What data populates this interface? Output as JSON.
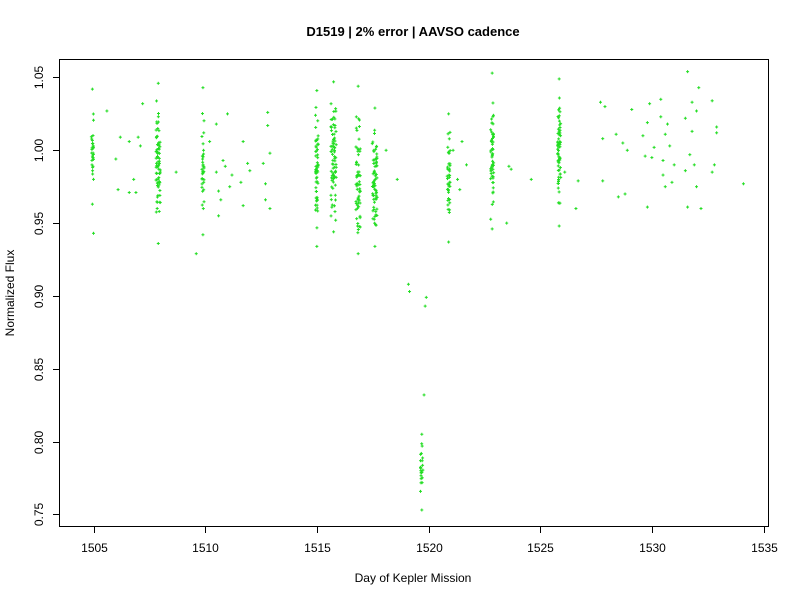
{
  "chart_data": {
    "type": "scatter",
    "title": "D1519 | 2% error | AAVSO cadence",
    "xlabel": "Day of Kepler Mission",
    "ylabel": "Normalized Flux",
    "xlim": [
      1503.5,
      1535.2
    ],
    "ylim": [
      0.742,
      1.062
    ],
    "xticks": [
      1505,
      1510,
      1515,
      1520,
      1525,
      1530,
      1535
    ],
    "xtick_labels": [
      "1505",
      "1510",
      "1515",
      "1520",
      "1525",
      "1530",
      "1535"
    ],
    "yticks": [
      0.75,
      0.8,
      0.85,
      0.9,
      0.95,
      1.0,
      1.05
    ],
    "ytick_labels": [
      "0.75",
      "0.80",
      "0.85",
      "0.90",
      "0.95",
      "1.00",
      "1.05"
    ],
    "grid": false,
    "marker_color": "#22dd22",
    "clusters": [
      {
        "x": 1504.95,
        "xspread": 0.05,
        "ymin": 0.963,
        "ymax": 1.042,
        "count": 28
      },
      {
        "x": 1507.9,
        "xspread": 0.1,
        "ymin": 0.936,
        "ymax": 1.046,
        "count": 70
      },
      {
        "x": 1509.9,
        "xspread": 0.05,
        "ymin": 0.942,
        "ymax": 1.043,
        "count": 32
      },
      {
        "x": 1515.0,
        "xspread": 0.06,
        "ymin": 0.934,
        "ymax": 1.041,
        "count": 55
      },
      {
        "x": 1515.75,
        "xspread": 0.12,
        "ymin": 0.944,
        "ymax": 1.047,
        "count": 75
      },
      {
        "x": 1516.85,
        "xspread": 0.1,
        "ymin": 0.929,
        "ymax": 1.044,
        "count": 60
      },
      {
        "x": 1517.6,
        "xspread": 0.12,
        "ymin": 0.934,
        "ymax": 1.029,
        "count": 70
      },
      {
        "x": 1520.9,
        "xspread": 0.07,
        "ymin": 0.937,
        "ymax": 1.025,
        "count": 40
      },
      {
        "x": 1522.85,
        "xspread": 0.07,
        "ymin": 0.946,
        "ymax": 1.053,
        "count": 55
      },
      {
        "x": 1525.85,
        "xspread": 0.07,
        "ymin": 0.948,
        "ymax": 1.049,
        "count": 65
      },
      {
        "x": 1519.7,
        "xspread": 0.06,
        "ymin": 0.753,
        "ymax": 0.805,
        "count": 22
      }
    ],
    "points": [
      {
        "x": 1505.0,
        "y": 0.943
      },
      {
        "x": 1505.6,
        "y": 1.027
      },
      {
        "x": 1506.0,
        "y": 0.994
      },
      {
        "x": 1506.1,
        "y": 0.973
      },
      {
        "x": 1506.2,
        "y": 1.009
      },
      {
        "x": 1506.6,
        "y": 1.006
      },
      {
        "x": 1506.6,
        "y": 0.971
      },
      {
        "x": 1506.8,
        "y": 0.98
      },
      {
        "x": 1506.9,
        "y": 0.971
      },
      {
        "x": 1507.0,
        "y": 1.009
      },
      {
        "x": 1507.1,
        "y": 1.003
      },
      {
        "x": 1507.2,
        "y": 1.032
      },
      {
        "x": 1508.7,
        "y": 0.985
      },
      {
        "x": 1509.6,
        "y": 0.929
      },
      {
        "x": 1510.2,
        "y": 1.006
      },
      {
        "x": 1510.5,
        "y": 0.985
      },
      {
        "x": 1510.5,
        "y": 1.018
      },
      {
        "x": 1510.6,
        "y": 0.972
      },
      {
        "x": 1510.6,
        "y": 0.955
      },
      {
        "x": 1510.7,
        "y": 0.966
      },
      {
        "x": 1510.8,
        "y": 0.993
      },
      {
        "x": 1510.9,
        "y": 0.989
      },
      {
        "x": 1511.0,
        "y": 1.025
      },
      {
        "x": 1511.1,
        "y": 0.975
      },
      {
        "x": 1511.2,
        "y": 0.983
      },
      {
        "x": 1511.6,
        "y": 0.978
      },
      {
        "x": 1511.7,
        "y": 1.006
      },
      {
        "x": 1511.7,
        "y": 0.962
      },
      {
        "x": 1511.9,
        "y": 0.991
      },
      {
        "x": 1512.0,
        "y": 0.986
      },
      {
        "x": 1512.6,
        "y": 0.991
      },
      {
        "x": 1512.7,
        "y": 0.966
      },
      {
        "x": 1512.7,
        "y": 0.977
      },
      {
        "x": 1512.8,
        "y": 1.026
      },
      {
        "x": 1512.8,
        "y": 1.017
      },
      {
        "x": 1512.9,
        "y": 0.998
      },
      {
        "x": 1512.9,
        "y": 0.96
      },
      {
        "x": 1518.1,
        "y": 1.0
      },
      {
        "x": 1518.6,
        "y": 0.98
      },
      {
        "x": 1519.1,
        "y": 0.908
      },
      {
        "x": 1519.15,
        "y": 0.903
      },
      {
        "x": 1519.9,
        "y": 0.899
      },
      {
        "x": 1519.85,
        "y": 0.893
      },
      {
        "x": 1519.8,
        "y": 0.832
      },
      {
        "x": 1521.1,
        "y": 1.0
      },
      {
        "x": 1521.3,
        "y": 0.98
      },
      {
        "x": 1521.5,
        "y": 1.006
      },
      {
        "x": 1521.7,
        "y": 0.99
      },
      {
        "x": 1521.4,
        "y": 0.973
      },
      {
        "x": 1523.6,
        "y": 0.989
      },
      {
        "x": 1523.7,
        "y": 0.987
      },
      {
        "x": 1523.5,
        "y": 0.95
      },
      {
        "x": 1524.6,
        "y": 0.98
      },
      {
        "x": 1526.1,
        "y": 0.985
      },
      {
        "x": 1526.6,
        "y": 0.96
      },
      {
        "x": 1526.7,
        "y": 0.979
      },
      {
        "x": 1527.7,
        "y": 1.033
      },
      {
        "x": 1527.8,
        "y": 1.008
      },
      {
        "x": 1527.9,
        "y": 1.03
      },
      {
        "x": 1527.8,
        "y": 0.979
      },
      {
        "x": 1528.4,
        "y": 1.011
      },
      {
        "x": 1528.5,
        "y": 0.968
      },
      {
        "x": 1528.7,
        "y": 1.005
      },
      {
        "x": 1528.8,
        "y": 0.97
      },
      {
        "x": 1528.9,
        "y": 1.0
      },
      {
        "x": 1529.1,
        "y": 1.028
      },
      {
        "x": 1529.6,
        "y": 1.01
      },
      {
        "x": 1529.7,
        "y": 0.996
      },
      {
        "x": 1529.8,
        "y": 1.019
      },
      {
        "x": 1529.8,
        "y": 0.961
      },
      {
        "x": 1529.9,
        "y": 1.032
      },
      {
        "x": 1530.0,
        "y": 0.995
      },
      {
        "x": 1530.1,
        "y": 1.002
      },
      {
        "x": 1530.4,
        "y": 1.035
      },
      {
        "x": 1530.4,
        "y": 1.023
      },
      {
        "x": 1530.5,
        "y": 0.983
      },
      {
        "x": 1530.5,
        "y": 0.993
      },
      {
        "x": 1530.6,
        "y": 1.011
      },
      {
        "x": 1530.6,
        "y": 0.975
      },
      {
        "x": 1530.7,
        "y": 1.018
      },
      {
        "x": 1530.8,
        "y": 1.003
      },
      {
        "x": 1530.9,
        "y": 0.978
      },
      {
        "x": 1531.0,
        "y": 0.99
      },
      {
        "x": 1531.5,
        "y": 1.022
      },
      {
        "x": 1531.5,
        "y": 0.986
      },
      {
        "x": 1531.6,
        "y": 1.054
      },
      {
        "x": 1531.6,
        "y": 0.961
      },
      {
        "x": 1531.7,
        "y": 0.997
      },
      {
        "x": 1531.8,
        "y": 1.033
      },
      {
        "x": 1531.8,
        "y": 1.013
      },
      {
        "x": 1531.9,
        "y": 0.99
      },
      {
        "x": 1532.0,
        "y": 1.027
      },
      {
        "x": 1532.0,
        "y": 0.975
      },
      {
        "x": 1532.1,
        "y": 1.043
      },
      {
        "x": 1532.2,
        "y": 0.96
      },
      {
        "x": 1532.7,
        "y": 0.985
      },
      {
        "x": 1532.7,
        "y": 1.034
      },
      {
        "x": 1532.8,
        "y": 0.99
      },
      {
        "x": 1532.9,
        "y": 1.016
      },
      {
        "x": 1532.9,
        "y": 1.012
      },
      {
        "x": 1534.1,
        "y": 0.977
      }
    ]
  }
}
